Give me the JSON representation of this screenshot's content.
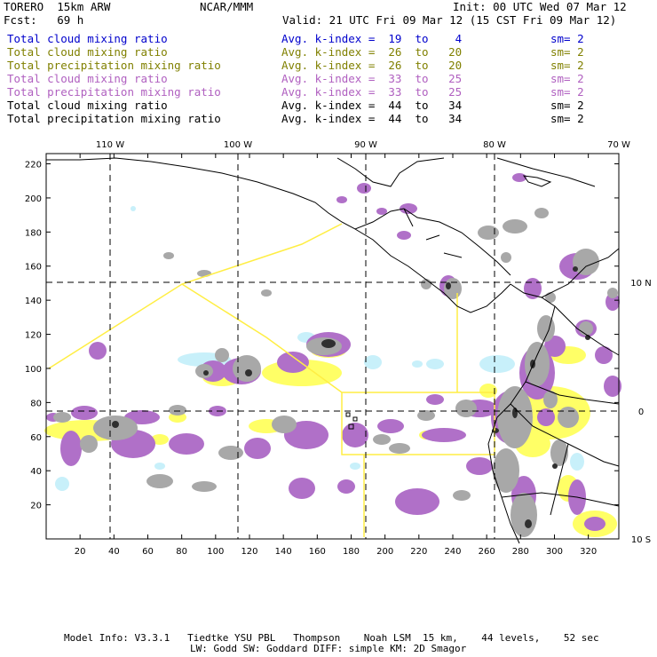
{
  "header": {
    "model": "TORERO  15km ARW",
    "org": "NCAR/MMM",
    "init": "Init: 00 UTC Wed 07 Mar 12",
    "fcst": "Fcst:   69 h",
    "valid": "Valid: 21 UTC Fri 09 Mar 12 (15 CST Fri 09 Mar 12)"
  },
  "legend": [
    {
      "field": "Total cloud mixing ratio",
      "kindex": "Avg. k-index =  19  to    4",
      "sm": "sm= 2",
      "color": "#0000cc"
    },
    {
      "field": "Total cloud mixing ratio",
      "kindex": "Avg. k-index =  26  to   20",
      "sm": "sm= 2",
      "color": "#808000"
    },
    {
      "field": "Total precipitation mixing ratio",
      "kindex": "Avg. k-index =  26  to   20",
      "sm": "sm= 2",
      "color": "#808000"
    },
    {
      "field": "Total cloud mixing ratio",
      "kindex": "Avg. k-index =  33  to   25",
      "sm": "sm= 2",
      "color": "#b060c0"
    },
    {
      "field": "Total precipitation mixing ratio",
      "kindex": "Avg. k-index =  33  to   25",
      "sm": "sm= 2",
      "color": "#b060c0"
    },
    {
      "field": "Total cloud mixing ratio",
      "kindex": "Avg. k-index =  44  to   34",
      "sm": "sm= 2",
      "color": "#000000"
    },
    {
      "field": "Total precipitation mixing ratio",
      "kindex": "Avg. k-index =  44  to   34",
      "sm": "sm= 2",
      "color": "#000000"
    }
  ],
  "map": {
    "x_ticks": [
      20,
      40,
      60,
      80,
      100,
      120,
      140,
      160,
      180,
      200,
      220,
      240,
      260,
      280,
      300,
      320
    ],
    "y_ticks": [
      20,
      40,
      60,
      80,
      100,
      120,
      140,
      160,
      180,
      200,
      220
    ],
    "lon_labels": [
      "110 W",
      "100 W",
      "90 W",
      "80 W",
      "70 W"
    ],
    "lat_labels": [
      "10 N",
      "0",
      "10 S"
    ],
    "colors": {
      "cyan": "#c8f0fa",
      "yellow": "#ffff66",
      "magenta": "#b070c8",
      "gray": "#a8a8a8",
      "dark": "#303030",
      "boundary": "#ffee44"
    }
  },
  "footer": {
    "line1": "Model Info: V3.3.1   Tiedtke YSU PBL   Thompson    Noah LSM  15 km,    44 levels,    52 sec",
    "line2": "LW: Godd SW: Goddard DIFF: simple KM: 2D Smagor"
  }
}
